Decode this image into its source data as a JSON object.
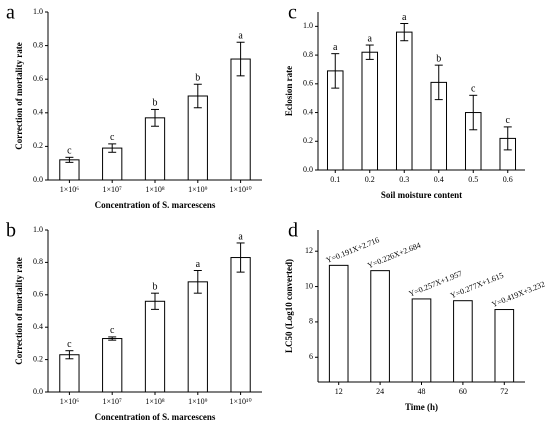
{
  "chart_data": [
    {
      "type": "bar",
      "panel": "a",
      "ylabel": "Correction of mortality rate",
      "xlabel": "Concentration of S. marcescens",
      "categories": [
        "1×10⁶",
        "1×10⁷",
        "1×10⁸",
        "1×10⁹",
        "1×10¹⁰"
      ],
      "values": [
        0.12,
        0.19,
        0.37,
        0.5,
        0.72
      ],
      "errors": [
        0.015,
        0.025,
        0.05,
        0.07,
        0.1
      ],
      "letters": [
        "c",
        "c",
        "b",
        "b",
        "a"
      ],
      "ylim": [
        0,
        1.0
      ],
      "yticks": [
        {
          "value": 0,
          "label": "0.0"
        },
        0.2,
        0.4,
        0.6,
        0.8,
        {
          "value": 1,
          "label": "1.0"
        }
      ],
      "color": "#ffffff"
    },
    {
      "type": "bar",
      "panel": "c",
      "ylabel": "Eclosion rate",
      "xlabel": "Soil moisture content",
      "categories": [
        "0.1",
        "0.2",
        "0.3",
        "0.4",
        "0.5",
        "0.6"
      ],
      "values": [
        0.69,
        0.82,
        0.96,
        0.61,
        0.4,
        0.22
      ],
      "errors": [
        0.12,
        0.05,
        0.06,
        0.12,
        0.12,
        0.08
      ],
      "letters": [
        "a",
        "a",
        "a",
        "b",
        "c",
        "c"
      ],
      "ylim": [
        0,
        1.1
      ],
      "yticks": [
        {
          "value": 0,
          "label": "0.0"
        },
        0.2,
        0.4,
        0.6,
        0.8,
        {
          "value": 1,
          "label": "1.0"
        }
      ],
      "color": "#ffffff"
    },
    {
      "type": "bar",
      "panel": "b",
      "ylabel": "Correction of mortality rate",
      "xlabel": "Concentration of S. marcescens",
      "categories": [
        "1×10⁶",
        "1×10⁷",
        "1×10⁸",
        "1×10⁹",
        "1×10¹⁰"
      ],
      "values": [
        0.23,
        0.33,
        0.56,
        0.68,
        0.83
      ],
      "errors": [
        0.025,
        0.01,
        0.05,
        0.07,
        0.09
      ],
      "letters": [
        "c",
        "c",
        "b",
        "a",
        "a"
      ],
      "ylim": [
        0,
        1.0
      ],
      "yticks": [
        {
          "value": 0,
          "label": "0.0"
        },
        0.2,
        0.4,
        0.6,
        0.8,
        {
          "value": 1,
          "label": "1.0"
        }
      ],
      "color": "#ffffff"
    },
    {
      "type": "bar",
      "panel": "d",
      "ylabel": "LC50 (Log10 converted)",
      "xlabel": "Time (h)",
      "categories": [
        "12",
        "24",
        "48",
        "60",
        "72"
      ],
      "values": [
        11.2,
        10.9,
        9.3,
        9.2,
        8.7
      ],
      "equations": [
        "Y=0.191X+2.716",
        "Y=0.226X+2.684",
        "Y=0.257X+1.957",
        "Y=0.277X+1.615",
        "Y=0.419X+3.232"
      ],
      "ylim": [
        4.6,
        13.2
      ],
      "yticks": [
        6,
        8,
        10,
        12
      ],
      "color": "#ffffff"
    }
  ]
}
